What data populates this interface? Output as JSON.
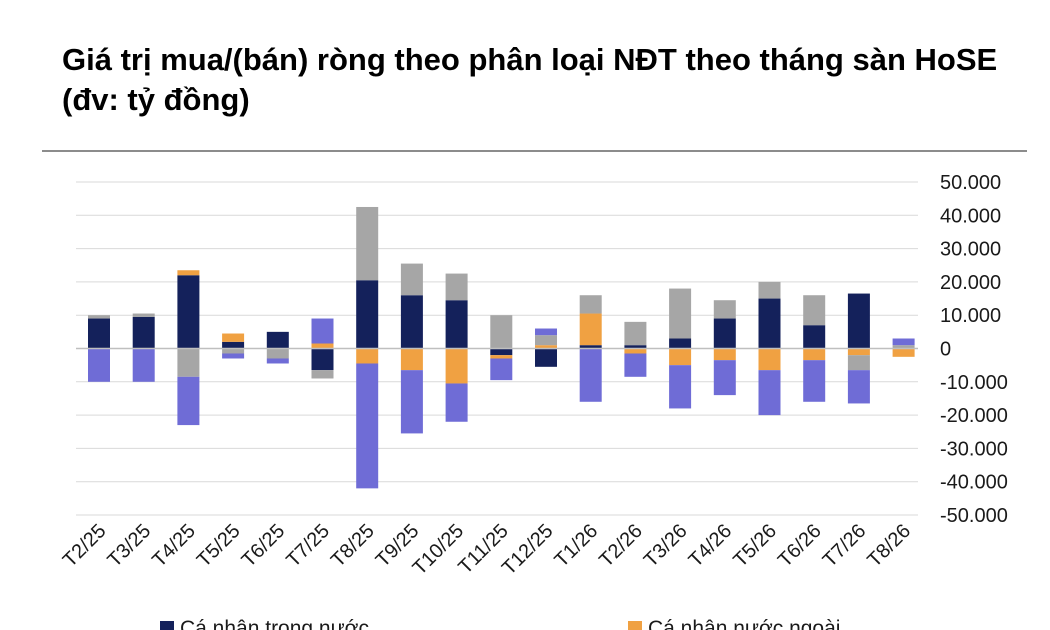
{
  "title": "Giá trị mua/(bán) ròng theo phân loại NĐT theo tháng sàn HoSE (đv: tỷ đồng)",
  "chart_data": {
    "type": "bar",
    "stacked": true,
    "categories": [
      "T2/25",
      "T3/25",
      "T4/25",
      "T5/25",
      "T6/25",
      "T7/25",
      "T8/25",
      "T9/25",
      "T10/25",
      "T11/25",
      "T12/25",
      "T1/26",
      "T2/26",
      "T3/26",
      "T4/26",
      "T5/26",
      "T6/26",
      "T7/26",
      "T8/26"
    ],
    "series": [
      {
        "name": "Cá nhân trong nước",
        "color": "#14215b",
        "values": [
          9000,
          9500,
          22000,
          2000,
          5000,
          -6500,
          20500,
          16000,
          14500,
          -2000,
          -5500,
          1000,
          1000,
          3000,
          9000,
          15000,
          7000,
          16500,
          0
        ]
      },
      {
        "name": "Cá nhân nước ngoài",
        "color": "#f0a142",
        "values": [
          0,
          0,
          1500,
          2500,
          0,
          1500,
          -4500,
          -6500,
          -10500,
          -1000,
          1000,
          9500,
          -1500,
          -5000,
          -3500,
          -6500,
          -3500,
          -2000,
          -2500
        ]
      },
      {
        "name": "",
        "color": "#a6a6a6",
        "values": [
          1000,
          1000,
          -8500,
          -1500,
          -3000,
          -2500,
          22000,
          9500,
          8000,
          10000,
          3000,
          5500,
          7000,
          15000,
          5500,
          5000,
          9000,
          -4500,
          1000
        ]
      },
      {
        "name": "",
        "color": "#6f6cd6",
        "values": [
          -10000,
          -10000,
          -14500,
          -1500,
          -1500,
          7500,
          -37500,
          -19000,
          -11500,
          -6500,
          2000,
          -16000,
          -7000,
          -13000,
          -10500,
          -13500,
          -12500,
          -10000,
          2000
        ]
      }
    ],
    "yticks": [
      "50.000",
      "40.000",
      "30.000",
      "20.000",
      "10.000",
      "0",
      "-10.000",
      "-20.000",
      "-30.000",
      "-40.000",
      "-50.000"
    ],
    "ylim": [
      -50000,
      50000
    ],
    "grid": true,
    "legend_position": "bottom"
  }
}
